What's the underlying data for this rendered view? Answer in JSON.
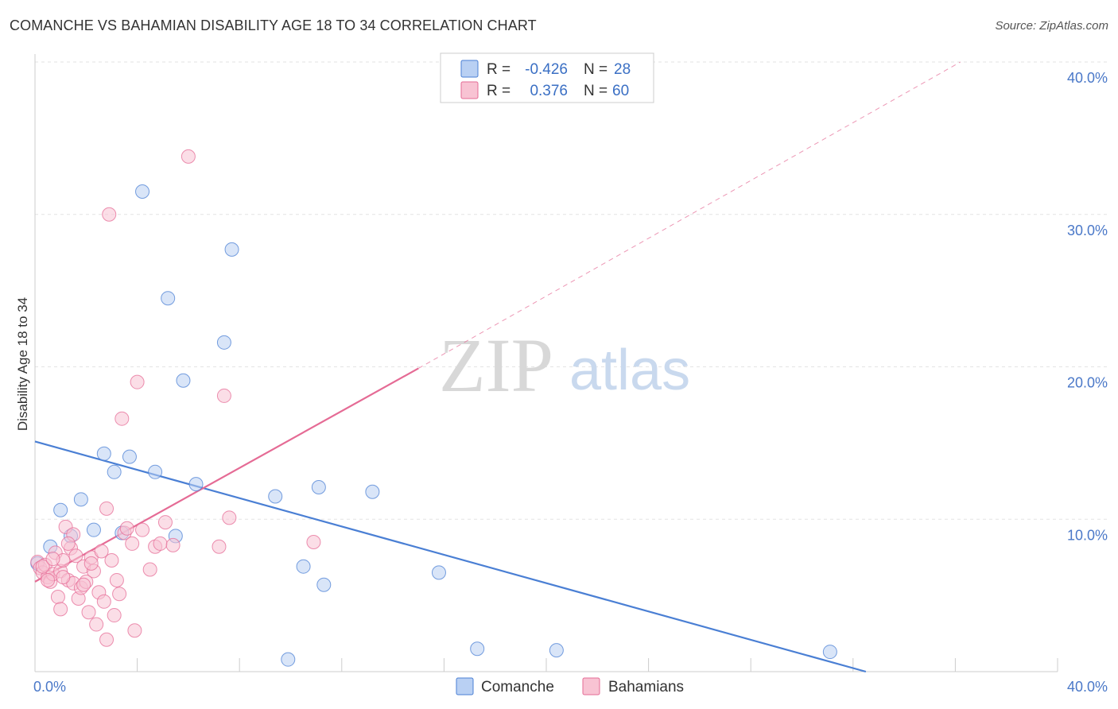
{
  "header": {
    "title": "COMANCHE VS BAHAMIAN DISABILITY AGE 18 TO 34 CORRELATION CHART",
    "source": "Source: ZipAtlas.com"
  },
  "watermark": {
    "zip": "ZIP",
    "atlas": "atlas"
  },
  "colors": {
    "comanche": "#4a7fd4",
    "comanche_fill": "#b9d0f3",
    "bahamians": "#e56b95",
    "bahamians_fill": "#f8c3d3",
    "grid": "#e3e3e3",
    "tick": "#4a78c8"
  },
  "legend_top": {
    "rows": [
      {
        "series": "comanche",
        "r_label": "R =",
        "r_value": "-0.426",
        "n_label": "N =",
        "n_value": "28"
      },
      {
        "series": "bahamians",
        "r_label": "R =",
        "r_value": "0.376",
        "n_label": "N =",
        "n_value": "60"
      }
    ]
  },
  "legend_bottom": [
    {
      "series": "comanche",
      "label": "Comanche"
    },
    {
      "series": "bahamians",
      "label": "Bahamians"
    }
  ],
  "chart_data": {
    "type": "scatter",
    "ylabel": "Disability Age 18 to 34",
    "xlim": [
      0,
      40
    ],
    "ylim": [
      0,
      40
    ],
    "x_tick_labels": [
      {
        "value": 0,
        "label": "0.0%"
      },
      {
        "value": 40,
        "label": "40.0%"
      }
    ],
    "y_tick_labels": [
      {
        "value": 10,
        "label": "10.0%"
      },
      {
        "value": 20,
        "label": "20.0%"
      },
      {
        "value": 30,
        "label": "30.0%"
      },
      {
        "value": 40,
        "label": "40.0%"
      }
    ],
    "grid": true,
    "series": [
      {
        "name": "Comanche",
        "key": "comanche",
        "points": [
          [
            0.1,
            7.1
          ],
          [
            0.6,
            8.2
          ],
          [
            1.0,
            10.6
          ],
          [
            1.4,
            8.9
          ],
          [
            1.8,
            11.3
          ],
          [
            2.3,
            9.3
          ],
          [
            2.7,
            14.3
          ],
          [
            3.1,
            13.1
          ],
          [
            3.4,
            9.1
          ],
          [
            3.7,
            14.1
          ],
          [
            4.2,
            31.5
          ],
          [
            4.7,
            13.1
          ],
          [
            5.2,
            24.5
          ],
          [
            5.5,
            8.9
          ],
          [
            5.8,
            19.1
          ],
          [
            6.3,
            12.3
          ],
          [
            7.4,
            21.6
          ],
          [
            7.7,
            27.7
          ],
          [
            9.4,
            11.5
          ],
          [
            9.9,
            0.8
          ],
          [
            10.5,
            6.9
          ],
          [
            11.1,
            12.1
          ],
          [
            11.3,
            5.7
          ],
          [
            13.2,
            11.8
          ],
          [
            15.8,
            6.5
          ],
          [
            17.3,
            1.5
          ],
          [
            20.4,
            1.4
          ],
          [
            31.1,
            1.3
          ]
        ],
        "trend": {
          "x0": 0,
          "y0": 15.1,
          "x1": 32.5,
          "y1": 0
        }
      },
      {
        "name": "Bahamians",
        "key": "bahamians",
        "points": [
          [
            0.1,
            7.2
          ],
          [
            0.2,
            6.8
          ],
          [
            0.3,
            6.5
          ],
          [
            0.4,
            7.0
          ],
          [
            0.5,
            6.2
          ],
          [
            0.6,
            5.9
          ],
          [
            0.7,
            6.4
          ],
          [
            0.8,
            7.8
          ],
          [
            0.9,
            4.9
          ],
          [
            1.0,
            6.6
          ],
          [
            1.0,
            4.1
          ],
          [
            1.1,
            7.3
          ],
          [
            1.2,
            9.5
          ],
          [
            1.3,
            6.0
          ],
          [
            1.4,
            8.1
          ],
          [
            1.5,
            9.0
          ],
          [
            1.5,
            5.8
          ],
          [
            1.6,
            7.6
          ],
          [
            1.7,
            4.8
          ],
          [
            1.8,
            5.5
          ],
          [
            1.9,
            6.9
          ],
          [
            2.0,
            5.9
          ],
          [
            2.1,
            3.9
          ],
          [
            2.2,
            7.5
          ],
          [
            2.3,
            6.6
          ],
          [
            2.4,
            3.1
          ],
          [
            2.5,
            5.2
          ],
          [
            2.6,
            7.9
          ],
          [
            2.7,
            4.6
          ],
          [
            2.8,
            10.7
          ],
          [
            2.8,
            2.1
          ],
          [
            2.9,
            30.0
          ],
          [
            3.0,
            7.3
          ],
          [
            3.1,
            3.7
          ],
          [
            3.2,
            6.0
          ],
          [
            3.3,
            5.1
          ],
          [
            3.4,
            16.6
          ],
          [
            3.5,
            9.1
          ],
          [
            3.6,
            9.4
          ],
          [
            3.8,
            8.4
          ],
          [
            3.9,
            2.7
          ],
          [
            4.0,
            19.0
          ],
          [
            4.2,
            9.3
          ],
          [
            4.5,
            6.7
          ],
          [
            4.7,
            8.2
          ],
          [
            4.9,
            8.4
          ],
          [
            5.1,
            9.8
          ],
          [
            5.4,
            8.3
          ],
          [
            6.0,
            33.8
          ],
          [
            7.2,
            8.2
          ],
          [
            7.4,
            18.1
          ],
          [
            7.6,
            10.1
          ],
          [
            10.9,
            8.5
          ],
          [
            1.1,
            6.2
          ],
          [
            0.3,
            6.9
          ],
          [
            0.5,
            6.0
          ],
          [
            1.9,
            5.7
          ],
          [
            2.2,
            7.1
          ],
          [
            0.7,
            7.4
          ],
          [
            1.3,
            8.4
          ]
        ],
        "trend": {
          "x0": 0,
          "y0": 5.9,
          "x1": 15.0,
          "y1": 19.9
        },
        "trend_extended": {
          "x0": 15.0,
          "y0": 19.9,
          "x1": 36.2,
          "y1": 40.0
        }
      }
    ]
  }
}
